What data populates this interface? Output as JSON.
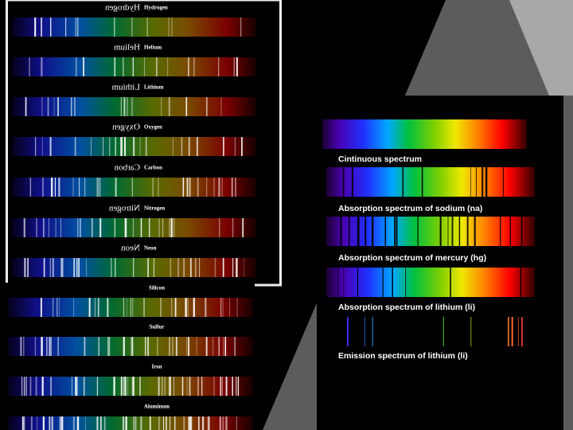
{
  "left_panel": {
    "labels": [
      "Hydrogen",
      "Helium",
      "Lithium",
      "Oxygen",
      "Carbon",
      "Nitrogen",
      "Neon"
    ]
  },
  "lower_panel": {
    "labels": [
      "Silicon",
      "Sulfur",
      "Iron",
      "Aluminum"
    ]
  },
  "right_panel": {
    "captions": [
      "Cintinuous spectrum",
      "Absorption spectrum of sodium (na)",
      "Absorption spectrum of mercury (hg)",
      "Absorption spectrum of lithium (li)",
      "Emission spectrum of lithium (li)"
    ]
  }
}
